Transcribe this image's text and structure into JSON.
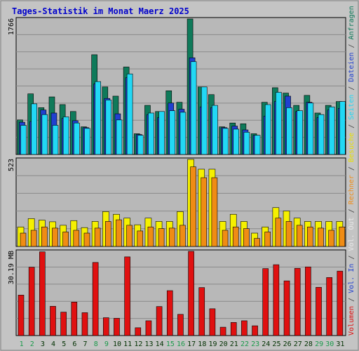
{
  "title": "Tages-Statistik im Monat Maerz 2025",
  "colors": {
    "background": "#c4c4c4",
    "panel": "#b8b8b8",
    "title": "#0000cc",
    "anfragen": "#0f7a5a",
    "dateien": "#2040d0",
    "seiten": "#22d8f5",
    "besuche": "#f5f000",
    "rechner": "#f08c14",
    "volumen": "#e01010",
    "vol_in": "#2040d0",
    "vol_out": "#e8e8e8",
    "weekend": "#1a9a4a",
    "weekday": "#003000"
  },
  "right_labels": {
    "top": [
      {
        "text": "Anfragen",
        "color": "#0f7a5a"
      },
      {
        "text": " / ",
        "color": "#404040"
      },
      {
        "text": "Dateien",
        "color": "#2040d0"
      },
      {
        "text": " / ",
        "color": "#404040"
      },
      {
        "text": "Seiten",
        "color": "#22d8f5"
      },
      {
        "text": " / ",
        "color": "#404040"
      },
      {
        "text": "Besuche",
        "color": "#e8e000"
      },
      {
        "text": " / ",
        "color": "#404040"
      },
      {
        "text": "Rechner",
        "color": "#f08c14"
      },
      {
        "text": " / ",
        "color": "#404040"
      },
      {
        "text": "Vol. Out",
        "color": "#e8e8e8"
      },
      {
        "text": " / ",
        "color": "#404040"
      },
      {
        "text": "Vol. In",
        "color": "#2040d0"
      },
      {
        "text": " / ",
        "color": "#404040"
      },
      {
        "text": "Volumen",
        "color": "#e01010"
      }
    ]
  },
  "chart_data": [
    {
      "type": "bar",
      "ymax_label": "1766",
      "ylim": [
        0,
        1766
      ],
      "categories": [
        "1",
        "2",
        "3",
        "4",
        "5",
        "6",
        "7",
        "8",
        "9",
        "10",
        "11",
        "12",
        "13",
        "14",
        "15",
        "16",
        "17",
        "18",
        "19",
        "20",
        "21",
        "22",
        "23",
        "24",
        "25",
        "26",
        "27",
        "28",
        "29",
        "30",
        "31"
      ],
      "series": [
        {
          "name": "Anfragen",
          "values": [
            450,
            790,
            610,
            750,
            650,
            560,
            360,
            1300,
            880,
            760,
            1140,
            270,
            640,
            560,
            830,
            680,
            1766,
            880,
            780,
            360,
            410,
            400,
            270,
            680,
            870,
            800,
            640,
            770,
            540,
            640,
            690
          ]
        },
        {
          "name": "Dateien",
          "values": [
            420,
            430,
            580,
            540,
            470,
            440,
            350,
            920,
            730,
            530,
            1000,
            260,
            520,
            480,
            670,
            590,
            1260,
            620,
            610,
            350,
            370,
            320,
            250,
            500,
            690,
            760,
            560,
            680,
            480,
            580,
            600
          ]
        },
        {
          "name": "Seiten",
          "values": [
            380,
            660,
            520,
            380,
            490,
            410,
            340,
            950,
            710,
            450,
            1050,
            250,
            540,
            560,
            570,
            550,
            1210,
            880,
            640,
            340,
            330,
            290,
            250,
            650,
            810,
            610,
            570,
            670,
            520,
            620,
            690
          ]
        }
      ]
    },
    {
      "type": "bar",
      "ymax_label": "523",
      "ylim": [
        0,
        523
      ],
      "categories": [
        "1",
        "2",
        "3",
        "4",
        "5",
        "6",
        "7",
        "8",
        "9",
        "10",
        "11",
        "12",
        "13",
        "14",
        "15",
        "16",
        "17",
        "18",
        "19",
        "20",
        "21",
        "22",
        "23",
        "24",
        "25",
        "26",
        "27",
        "28",
        "29",
        "30",
        "31"
      ],
      "series": [
        {
          "name": "Besuche",
          "values": [
            117,
            167,
            158,
            148,
            127,
            155,
            113,
            150,
            209,
            193,
            170,
            130,
            170,
            150,
            150,
            209,
            523,
            464,
            464,
            150,
            193,
            150,
            80,
            117,
            233,
            213,
            170,
            150,
            150,
            150,
            150
          ]
        },
        {
          "name": "Rechner",
          "values": [
            80,
            97,
            117,
            110,
            87,
            97,
            80,
            110,
            150,
            160,
            127,
            93,
            117,
            107,
            110,
            127,
            478,
            413,
            413,
            97,
            117,
            107,
            48,
            87,
            170,
            150,
            127,
            117,
            110,
            97,
            117
          ]
        }
      ]
    },
    {
      "type": "bar",
      "ymax_label": "30.19 MB",
      "ylim": [
        0,
        30.19
      ],
      "categories": [
        "1",
        "2",
        "3",
        "4",
        "5",
        "6",
        "7",
        "8",
        "9",
        "10",
        "11",
        "12",
        "13",
        "14",
        "15",
        "16",
        "17",
        "18",
        "19",
        "20",
        "21",
        "22",
        "23",
        "24",
        "25",
        "26",
        "27",
        "28",
        "29",
        "30",
        "31"
      ],
      "series": [
        {
          "name": "Volumen",
          "values": [
            14.5,
            24.5,
            30.0,
            10.5,
            8.4,
            12.0,
            8.2,
            26.2,
            6.4,
            6.2,
            28.2,
            2.8,
            5.3,
            10.4,
            16.1,
            7.6,
            30.19,
            17.2,
            9.6,
            3.0,
            4.7,
            5.3,
            3.5,
            24.0,
            25.4,
            19.6,
            24.1,
            24.6,
            17.3,
            20.8,
            23.1
          ]
        }
      ]
    }
  ],
  "xaxis": {
    "days": [
      "1",
      "2",
      "3",
      "4",
      "5",
      "6",
      "7",
      "8",
      "9",
      "10",
      "11",
      "12",
      "13",
      "14",
      "15",
      "16",
      "17",
      "18",
      "19",
      "20",
      "21",
      "22",
      "23",
      "24",
      "25",
      "26",
      "27",
      "28",
      "29",
      "30",
      "31"
    ],
    "weekend": [
      "1",
      "2",
      "8",
      "9",
      "15",
      "16",
      "22",
      "23",
      "29",
      "30"
    ]
  }
}
